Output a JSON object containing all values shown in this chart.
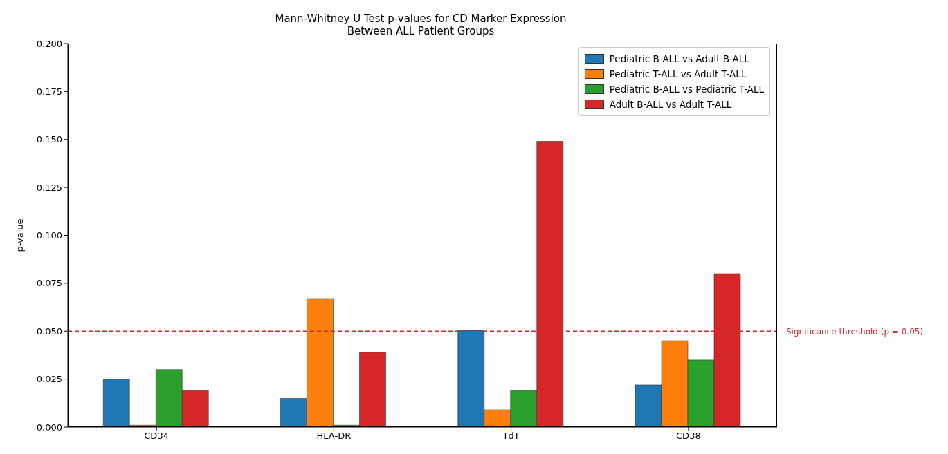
{
  "chart_data": {
    "type": "bar",
    "title": "Mann-Whitney U Test p-values for CD Marker Expression\nBetween ALL Patient Groups",
    "ylabel": "p-value",
    "categories": [
      "CD34",
      "HLA-DR",
      "TdT",
      "CD38"
    ],
    "series": [
      {
        "name": "Pediatric B-ALL vs Adult B-ALL",
        "color": "#1f77b4",
        "values": [
          0.025,
          0.015,
          0.0505,
          0.022
        ]
      },
      {
        "name": "Pediatric T-ALL vs Adult T-ALL",
        "color": "#ff7f0e",
        "values": [
          0.001,
          0.067,
          0.009,
          0.045
        ]
      },
      {
        "name": "Pediatric B-ALL vs Pediatric T-ALL",
        "color": "#2ca02c",
        "values": [
          0.03,
          0.001,
          0.019,
          0.035
        ]
      },
      {
        "name": "Adult B-ALL vs Adult T-ALL",
        "color": "#d62728",
        "values": [
          0.019,
          0.039,
          0.149,
          0.08
        ]
      }
    ],
    "ylim": [
      0,
      0.2
    ],
    "yticks": [
      {
        "value": 0,
        "label": "0.000"
      },
      {
        "value": 0.025,
        "label": "0.025"
      },
      {
        "value": 0.05,
        "label": "0.050"
      },
      {
        "value": 0.075,
        "label": "0.075"
      },
      {
        "value": 0.1,
        "label": "0.100"
      },
      {
        "value": 0.125,
        "label": "0.125"
      },
      {
        "value": 0.15,
        "label": "0.150"
      },
      {
        "value": 0.175,
        "label": "0.175"
      },
      {
        "value": 0.2,
        "label": "0.200"
      }
    ],
    "ref_lines": [
      {
        "axis": "y",
        "value": 0.05,
        "label": "Significance threshold (p = 0.05)",
        "color": "#d62728",
        "line_style": "dashed"
      }
    ],
    "grid": false,
    "legend": "top right"
  }
}
